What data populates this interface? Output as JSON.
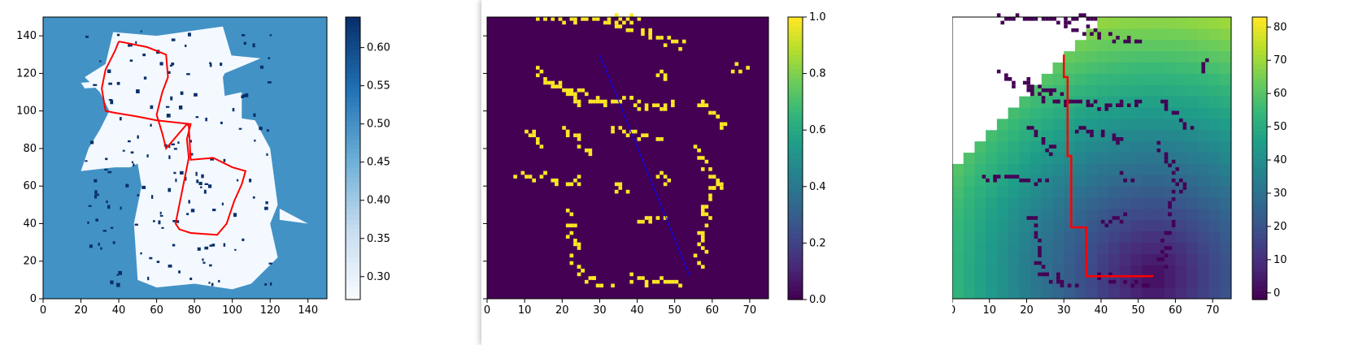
{
  "chart_data": [
    {
      "type": "heatmap",
      "title": "",
      "xlabel": "",
      "ylabel": "",
      "xlim": [
        0,
        150
      ],
      "ylim": [
        0,
        150
      ],
      "xticks": [
        "0",
        "20",
        "40",
        "60",
        "80",
        "100",
        "120",
        "140"
      ],
      "yticks": [
        "0",
        "20",
        "40",
        "60",
        "80",
        "100",
        "120",
        "140"
      ],
      "colormap": "Blues",
      "colorbar": {
        "min": 0.27,
        "max": 0.64,
        "ticks": [
          "0.30",
          "0.35",
          "0.40",
          "0.45",
          "0.50",
          "0.55",
          "0.60"
        ]
      },
      "colors": {
        "unknown": "#4292c6",
        "free": "#f4f9ff",
        "occupied": "#08306b",
        "path": "#ff0000"
      },
      "path": [
        [
          40,
          137
        ],
        [
          55,
          134
        ],
        [
          65,
          130
        ],
        [
          66,
          118
        ],
        [
          63,
          110
        ],
        [
          60,
          98
        ],
        [
          63,
          88
        ],
        [
          65,
          80
        ],
        [
          76,
          93
        ],
        [
          77,
          92
        ],
        [
          78,
          74
        ],
        [
          90,
          75
        ],
        [
          100,
          70
        ],
        [
          107,
          68
        ],
        [
          105,
          61
        ],
        [
          101,
          52
        ],
        [
          97,
          40
        ],
        [
          92,
          34
        ],
        [
          78,
          35
        ],
        [
          72,
          37
        ],
        [
          70,
          40
        ],
        [
          73,
          55
        ],
        [
          75,
          65
        ],
        [
          76,
          70
        ],
        [
          77,
          75
        ],
        [
          76,
          85
        ],
        [
          78,
          93
        ],
        [
          60,
          95
        ],
        [
          50,
          97
        ],
        [
          38,
          99
        ],
        [
          33,
          100
        ],
        [
          31,
          112
        ],
        [
          33,
          122
        ],
        [
          38,
          132
        ],
        [
          40,
          137
        ]
      ]
    },
    {
      "type": "heatmap",
      "title": "",
      "xlabel": "",
      "ylabel": "",
      "xlim": [
        0,
        75
      ],
      "ylim": [
        0,
        75
      ],
      "xticks": [
        "0",
        "10",
        "20",
        "30",
        "40",
        "50",
        "60",
        "70"
      ],
      "yticks": [
        "0",
        "10",
        "20",
        "30",
        "40",
        "50",
        "60",
        "70"
      ],
      "colormap": "viridis",
      "colorbar": {
        "min": 0.0,
        "max": 1.0,
        "ticks": [
          "0.0",
          "0.2",
          "0.4",
          "0.6",
          "0.8",
          "1.0"
        ]
      },
      "colors": {
        "background": "#440154",
        "occupied": "#fde725",
        "line": "#0000ff"
      },
      "line": [
        [
          30,
          65
        ],
        [
          54,
          6
        ]
      ]
    },
    {
      "type": "heatmap",
      "title": "",
      "xlabel": "",
      "ylabel": "",
      "xlim": [
        0,
        75
      ],
      "ylim": [
        0,
        75
      ],
      "xticks": [
        "0",
        "10",
        "20",
        "30",
        "40",
        "50",
        "60",
        "70"
      ],
      "yticks": [
        "0",
        "10",
        "20",
        "30",
        "40",
        "50",
        "60",
        "70"
      ],
      "colormap": "viridis",
      "colorbar": {
        "min": -2,
        "max": 83,
        "ticks": [
          "0",
          "10",
          "20",
          "30",
          "40",
          "50",
          "60",
          "70",
          "80"
        ]
      },
      "colors": {
        "obstacle": "#440154",
        "unreached": "#ffffff",
        "path": "#ff0000"
      },
      "goal": [
        54,
        6
      ],
      "path": [
        [
          30,
          65
        ],
        [
          30,
          59
        ],
        [
          31,
          59
        ],
        [
          31,
          38
        ],
        [
          32,
          38
        ],
        [
          32,
          19
        ],
        [
          36,
          19
        ],
        [
          36,
          6
        ],
        [
          54,
          6
        ]
      ]
    }
  ]
}
